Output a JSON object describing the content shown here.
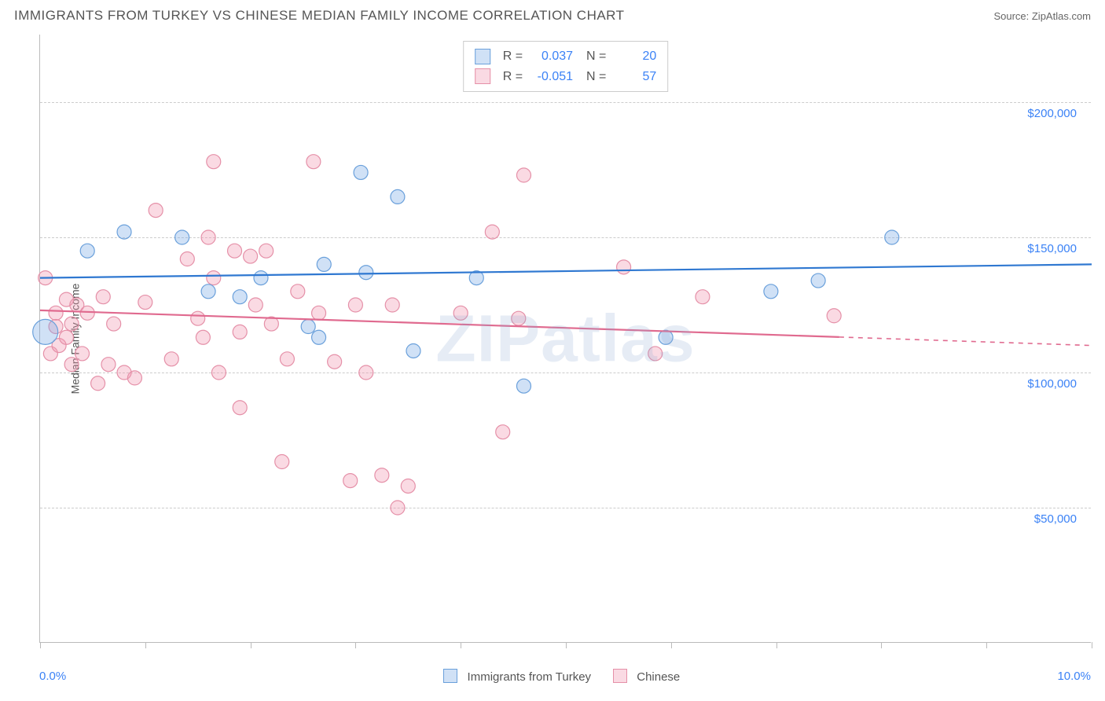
{
  "header": {
    "title": "IMMIGRANTS FROM TURKEY VS CHINESE MEDIAN FAMILY INCOME CORRELATION CHART",
    "source": "Source: ZipAtlas.com"
  },
  "watermark": "ZIPatlas",
  "chart": {
    "type": "scatter",
    "background_color": "#ffffff",
    "grid_color": "#cccccc",
    "axis_color": "#bbbbbb",
    "tick_label_color": "#3b82f6",
    "text_color": "#555555",
    "ylabel": "Median Family Income",
    "xlim": [
      0.0,
      10.0
    ],
    "ylim": [
      0,
      225000
    ],
    "x_tick_positions": [
      0,
      1,
      2,
      3,
      4,
      5,
      6,
      7,
      8,
      9,
      10
    ],
    "x_min_label": "0.0%",
    "x_max_label": "10.0%",
    "y_gridlines": [
      {
        "value": 50000,
        "label": "$50,000"
      },
      {
        "value": 100000,
        "label": "$100,000"
      },
      {
        "value": 150000,
        "label": "$150,000"
      },
      {
        "value": 200000,
        "label": "$200,000"
      }
    ],
    "series": [
      {
        "key": "turkey",
        "name": "Immigrants from Turkey",
        "fill_color": "rgba(120,170,230,0.35)",
        "stroke_color": "#6aa0db",
        "line_color": "#2f78d1",
        "marker_radius": 9,
        "trend": {
          "y_at_xmin": 135000,
          "y_at_xmax": 140000,
          "solid_until_x": 10.0
        },
        "R": "0.037",
        "N": "20",
        "points": [
          {
            "x": 0.05,
            "y": 115000,
            "r": 16
          },
          {
            "x": 0.45,
            "y": 145000
          },
          {
            "x": 0.8,
            "y": 152000
          },
          {
            "x": 1.35,
            "y": 150000
          },
          {
            "x": 1.6,
            "y": 130000
          },
          {
            "x": 1.9,
            "y": 128000
          },
          {
            "x": 2.1,
            "y": 135000
          },
          {
            "x": 2.55,
            "y": 117000
          },
          {
            "x": 3.05,
            "y": 174000
          },
          {
            "x": 2.7,
            "y": 140000
          },
          {
            "x": 3.1,
            "y": 137000
          },
          {
            "x": 3.4,
            "y": 165000
          },
          {
            "x": 3.55,
            "y": 108000
          },
          {
            "x": 4.15,
            "y": 135000
          },
          {
            "x": 4.6,
            "y": 95000
          },
          {
            "x": 5.95,
            "y": 113000
          },
          {
            "x": 6.95,
            "y": 130000
          },
          {
            "x": 7.4,
            "y": 134000
          },
          {
            "x": 8.1,
            "y": 150000
          },
          {
            "x": 2.65,
            "y": 113000
          }
        ]
      },
      {
        "key": "chinese",
        "name": "Chinese",
        "fill_color": "rgba(240,150,175,0.35)",
        "stroke_color": "#e590a8",
        "line_color": "#e06a8f",
        "marker_radius": 9,
        "trend": {
          "y_at_xmin": 123000,
          "y_at_xmax": 110000,
          "solid_until_x": 7.6
        },
        "R": "-0.051",
        "N": "57",
        "points": [
          {
            "x": 0.05,
            "y": 135000
          },
          {
            "x": 0.1,
            "y": 107000
          },
          {
            "x": 0.15,
            "y": 122000
          },
          {
            "x": 0.15,
            "y": 117000
          },
          {
            "x": 0.18,
            "y": 110000
          },
          {
            "x": 0.25,
            "y": 127000
          },
          {
            "x": 0.25,
            "y": 113000
          },
          {
            "x": 0.3,
            "y": 118000
          },
          {
            "x": 0.3,
            "y": 103000
          },
          {
            "x": 0.35,
            "y": 125000
          },
          {
            "x": 0.4,
            "y": 107000
          },
          {
            "x": 0.45,
            "y": 122000
          },
          {
            "x": 0.55,
            "y": 96000
          },
          {
            "x": 0.6,
            "y": 128000
          },
          {
            "x": 0.65,
            "y": 103000
          },
          {
            "x": 0.7,
            "y": 118000
          },
          {
            "x": 0.8,
            "y": 100000
          },
          {
            "x": 0.9,
            "y": 98000
          },
          {
            "x": 1.0,
            "y": 126000
          },
          {
            "x": 1.1,
            "y": 160000
          },
          {
            "x": 1.25,
            "y": 105000
          },
          {
            "x": 1.4,
            "y": 142000
          },
          {
            "x": 1.5,
            "y": 120000
          },
          {
            "x": 1.55,
            "y": 113000
          },
          {
            "x": 1.6,
            "y": 150000
          },
          {
            "x": 1.65,
            "y": 135000
          },
          {
            "x": 1.7,
            "y": 100000
          },
          {
            "x": 1.65,
            "y": 178000
          },
          {
            "x": 1.85,
            "y": 145000
          },
          {
            "x": 1.9,
            "y": 115000
          },
          {
            "x": 1.9,
            "y": 87000
          },
          {
            "x": 2.0,
            "y": 143000
          },
          {
            "x": 2.05,
            "y": 125000
          },
          {
            "x": 2.15,
            "y": 145000
          },
          {
            "x": 2.2,
            "y": 118000
          },
          {
            "x": 2.3,
            "y": 67000
          },
          {
            "x": 2.35,
            "y": 105000
          },
          {
            "x": 2.45,
            "y": 130000
          },
          {
            "x": 2.6,
            "y": 178000
          },
          {
            "x": 2.65,
            "y": 122000
          },
          {
            "x": 2.8,
            "y": 104000
          },
          {
            "x": 2.95,
            "y": 60000
          },
          {
            "x": 3.0,
            "y": 125000
          },
          {
            "x": 3.25,
            "y": 62000
          },
          {
            "x": 3.35,
            "y": 125000
          },
          {
            "x": 3.4,
            "y": 50000
          },
          {
            "x": 3.5,
            "y": 58000
          },
          {
            "x": 4.0,
            "y": 122000
          },
          {
            "x": 4.3,
            "y": 152000
          },
          {
            "x": 4.4,
            "y": 78000
          },
          {
            "x": 4.55,
            "y": 120000
          },
          {
            "x": 4.6,
            "y": 173000
          },
          {
            "x": 5.55,
            "y": 139000
          },
          {
            "x": 5.85,
            "y": 107000
          },
          {
            "x": 6.3,
            "y": 128000
          },
          {
            "x": 7.55,
            "y": 121000
          },
          {
            "x": 3.1,
            "y": 100000
          }
        ]
      }
    ],
    "bottom_legend_swatches": [
      {
        "fill": "rgba(120,170,230,0.35)",
        "stroke": "#6aa0db"
      },
      {
        "fill": "rgba(240,150,175,0.35)",
        "stroke": "#e590a8"
      }
    ]
  }
}
